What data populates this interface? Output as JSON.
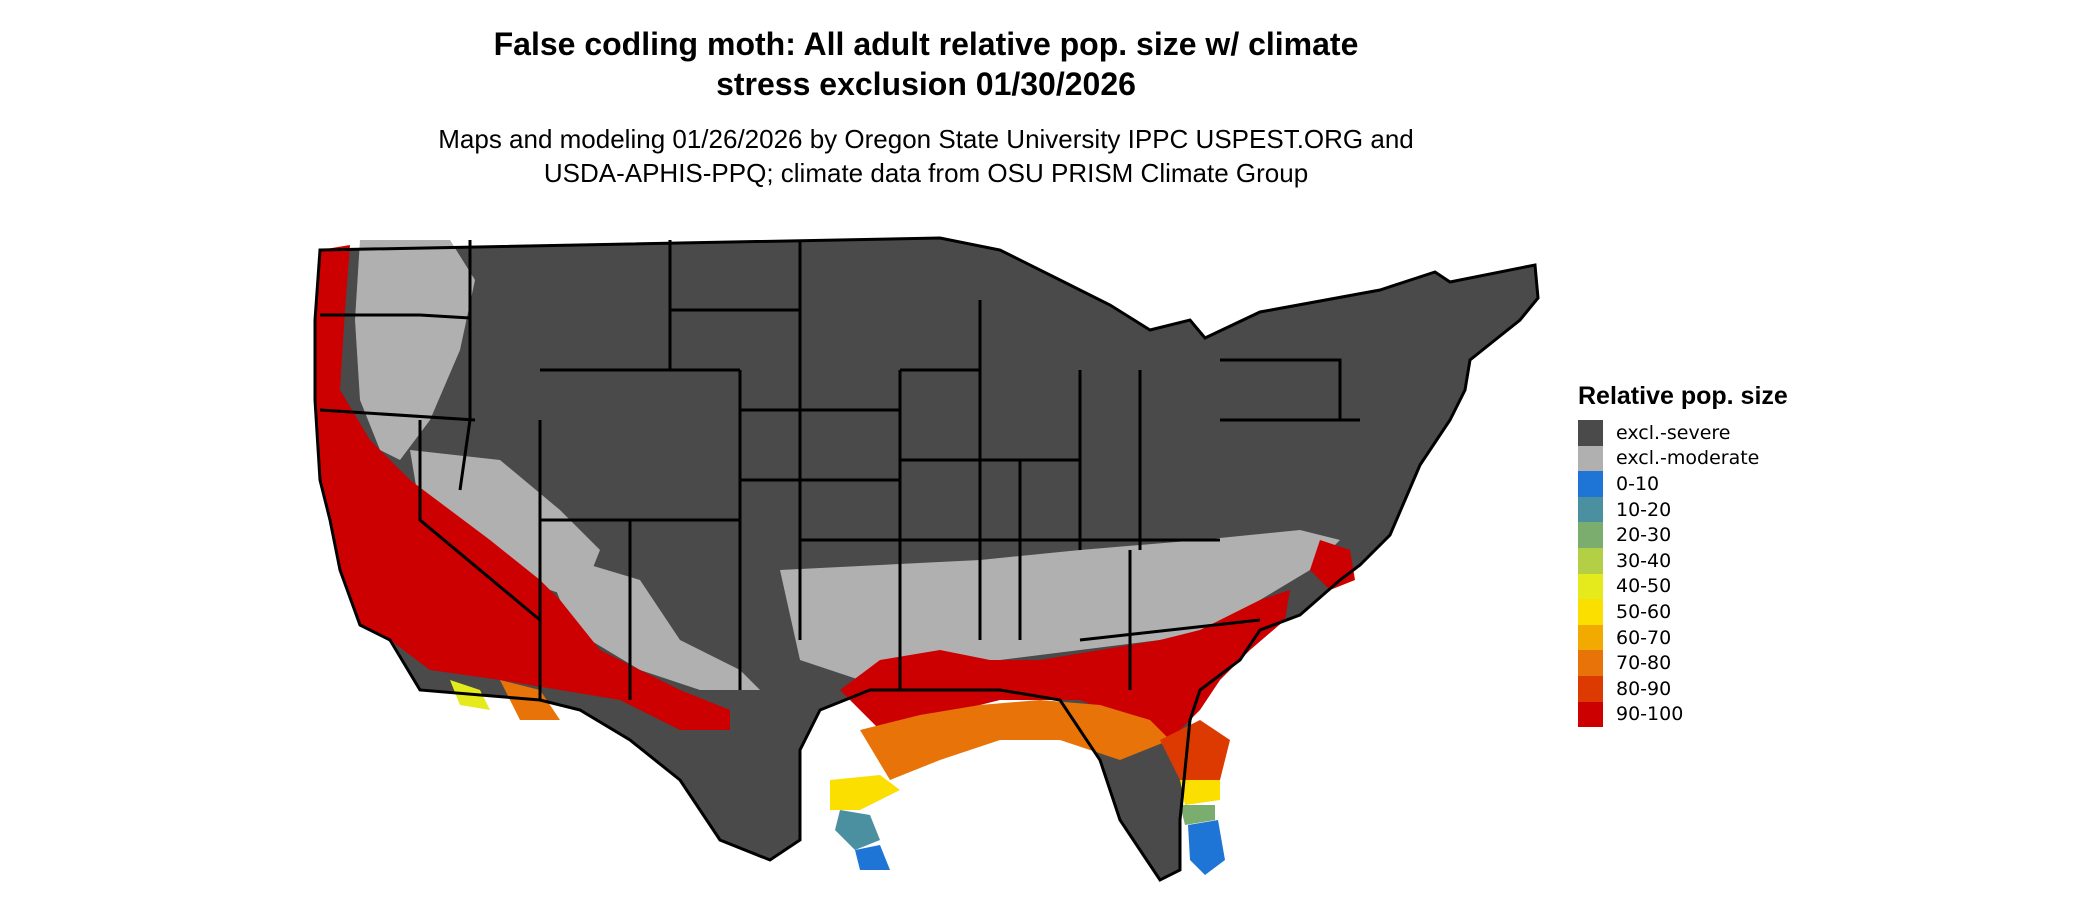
{
  "title": "False codling moth: All adult relative pop. size w/ climate stress exclusion 01/30/2026",
  "subtitle_line1": "Maps and modeling 01/26/2026 by Oregon State University IPPC USPEST.ORG and",
  "subtitle_line2": "USDA-APHIS-PPQ; climate data from OSU PRISM Climate Group",
  "legend": {
    "title": "Relative pop. size",
    "items": [
      {
        "label": "excl.-severe",
        "color": "#4a4a4a"
      },
      {
        "label": "excl.-moderate",
        "color": "#b0b0b0"
      },
      {
        "label": "0-10",
        "color": "#1f75d6"
      },
      {
        "label": "10-20",
        "color": "#4a90a0"
      },
      {
        "label": "20-30",
        "color": "#7aad6e"
      },
      {
        "label": "30-40",
        "color": "#b3cf45"
      },
      {
        "label": "40-50",
        "color": "#e4ea1c"
      },
      {
        "label": "50-60",
        "color": "#fadf00"
      },
      {
        "label": "60-70",
        "color": "#f2aa00"
      },
      {
        "label": "70-80",
        "color": "#e87308"
      },
      {
        "label": "80-90",
        "color": "#dc3a00"
      },
      {
        "label": "90-100",
        "color": "#cc0000"
      }
    ]
  }
}
